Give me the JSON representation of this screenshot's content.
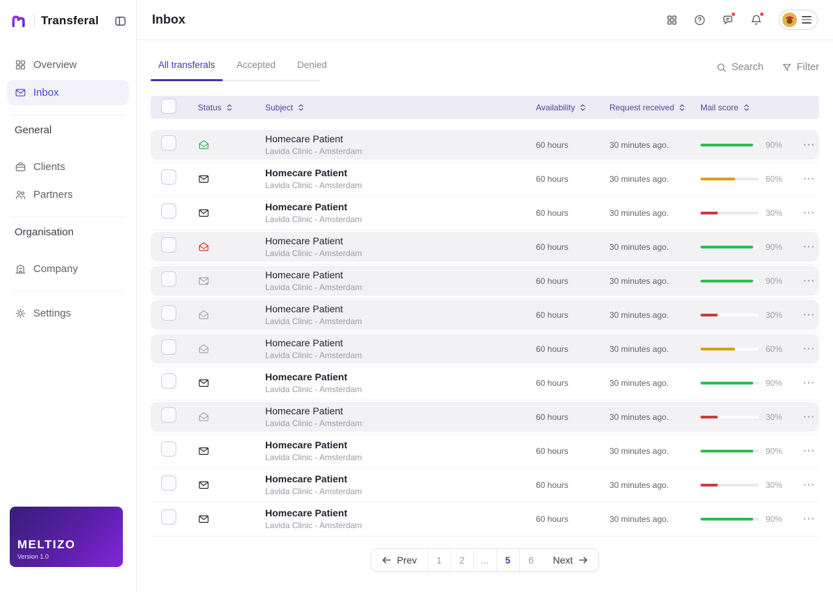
{
  "brand": {
    "name": "Transferal"
  },
  "sidebar": {
    "nav": [
      {
        "label": "Overview",
        "icon": "dashboard",
        "active": false
      },
      {
        "label": "Inbox",
        "icon": "mail",
        "active": true
      }
    ],
    "sections": [
      {
        "heading": "General",
        "items": [
          {
            "label": "Clients",
            "icon": "briefcase"
          },
          {
            "label": "Partners",
            "icon": "people"
          }
        ]
      },
      {
        "heading": "Organisation",
        "items": [
          {
            "label": "Company",
            "icon": "building"
          }
        ]
      }
    ],
    "settings": {
      "label": "Settings",
      "icon": "gear"
    },
    "footer": {
      "logo": "MELTIZO",
      "version": "Version 1.0"
    }
  },
  "header": {
    "title": "Inbox"
  },
  "tabs": [
    {
      "label": "All transferals",
      "active": true
    },
    {
      "label": "Accepted",
      "active": false
    },
    {
      "label": "Denied",
      "active": false
    }
  ],
  "toolbar": {
    "search": "Search",
    "filter": "Filter"
  },
  "table": {
    "columns": [
      {
        "label": "Status"
      },
      {
        "label": "Subject"
      },
      {
        "label": "Availability"
      },
      {
        "label": "Request received"
      },
      {
        "label": "Mail score"
      }
    ],
    "rows": [
      {
        "title": "Homecare Patient",
        "subtitle": "Lavida Clinic - Amsterdam",
        "availability": "60 hours",
        "received": "30 minutes ago.",
        "score": 90,
        "score_label": "90%",
        "bar_color": "#2BBE4F",
        "mail_state": "open",
        "mail_color": "#34A853",
        "read": true
      },
      {
        "title": "Homecare Patient",
        "subtitle": "Lavida Clinic - Amsterdam",
        "availability": "60 hours",
        "received": "30 minutes ago.",
        "score": 60,
        "score_label": "60%",
        "bar_color": "#D5A10B",
        "mail_state": "closed",
        "mail_color": "#262430",
        "read": false
      },
      {
        "title": "Homecare Patient",
        "subtitle": "Lavida Clinic - Amsterdam",
        "availability": "60 hours",
        "received": "30 minutes ago.",
        "score": 30,
        "score_label": "30%",
        "bar_color": "#CC3B3B",
        "mail_state": "closed",
        "mail_color": "#262430",
        "read": false
      },
      {
        "title": "Homecare Patient",
        "subtitle": "Lavida Clinic - Amsterdam",
        "availability": "60 hours",
        "received": "30 minutes ago.",
        "score": 90,
        "score_label": "90%",
        "bar_color": "#2BBE4F",
        "mail_state": "open",
        "mail_color": "#D93025",
        "read": true
      },
      {
        "title": "Homecare Patient",
        "subtitle": "Lavida Clinic - Amsterdam",
        "availability": "60 hours",
        "received": "30 minutes ago.",
        "score": 90,
        "score_label": "90%",
        "bar_color": "#2BBE4F",
        "mail_state": "closed-dot",
        "mail_color": "#A3A7AE",
        "read": true
      },
      {
        "title": "Homecare Patient",
        "subtitle": "Lavida Clinic - Amsterdam",
        "availability": "60 hours",
        "received": "30 minutes ago.",
        "score": 30,
        "score_label": "30%",
        "bar_color": "#CC3B3B",
        "mail_state": "open",
        "mail_color": "#A3A7AE",
        "read": true
      },
      {
        "title": "Homecare Patient",
        "subtitle": "Lavida Clinic - Amsterdam",
        "availability": "60 hours",
        "received": "30 minutes ago.",
        "score": 60,
        "score_label": "60%",
        "bar_color": "#D5A10B",
        "mail_state": "open",
        "mail_color": "#A3A7AE",
        "read": true
      },
      {
        "title": "Homecare Patient",
        "subtitle": "Lavida Clinic - Amsterdam",
        "availability": "60 hours",
        "received": "30 minutes ago.",
        "score": 90,
        "score_label": "90%",
        "bar_color": "#2BBE4F",
        "mail_state": "closed",
        "mail_color": "#262430",
        "read": false
      },
      {
        "title": "Homecare Patient",
        "subtitle": "Lavida Clinic - Amsterdam",
        "availability": "60 hours",
        "received": "30 minutes ago.",
        "score": 30,
        "score_label": "30%",
        "bar_color": "#CC3B3B",
        "mail_state": "open",
        "mail_color": "#A3A7AE",
        "read": true
      },
      {
        "title": "Homecare Patient",
        "subtitle": "Lavida Clinic - Amsterdam",
        "availability": "60 hours",
        "received": "30 minutes ago.",
        "score": 90,
        "score_label": "90%",
        "bar_color": "#2BBE4F",
        "mail_state": "closed",
        "mail_color": "#262430",
        "read": false
      },
      {
        "title": "Homecare Patient",
        "subtitle": "Lavida Clinic - Amsterdam",
        "availability": "60 hours",
        "received": "30 minutes ago.",
        "score": 30,
        "score_label": "30%",
        "bar_color": "#CC3B3B",
        "mail_state": "closed",
        "mail_color": "#262430",
        "read": false
      },
      {
        "title": "Homecare Patient",
        "subtitle": "Lavida Clinic - Amsterdam",
        "availability": "60 hours",
        "received": "30 minutes ago.",
        "score": 90,
        "score_label": "90%",
        "bar_color": "#2BBE4F",
        "mail_state": "closed",
        "mail_color": "#262430",
        "read": false
      }
    ]
  },
  "pagination": {
    "prev": "Prev",
    "next": "Next",
    "pages": [
      {
        "label": "1",
        "active": false
      },
      {
        "label": "2",
        "active": false
      },
      {
        "label": "...",
        "active": false
      },
      {
        "label": "5",
        "active": true
      },
      {
        "label": "6",
        "active": false
      }
    ]
  }
}
